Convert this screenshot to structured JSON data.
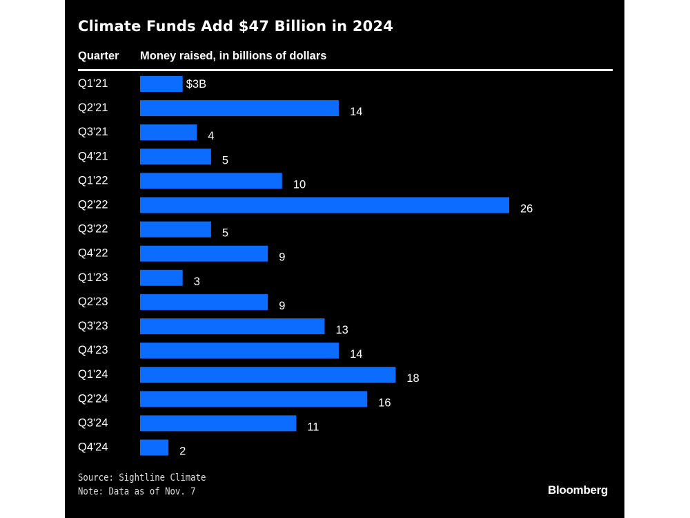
{
  "chart_data": {
    "type": "bar",
    "orientation": "horizontal",
    "title": "Climate Funds Add $47 Billion in 2024",
    "category_header": "Quarter",
    "value_header": "Money raised, in billions of dollars",
    "categories": [
      "Q1'21",
      "Q2'21",
      "Q3'21",
      "Q4'21",
      "Q1'22",
      "Q2'22",
      "Q3'22",
      "Q4'22",
      "Q1'23",
      "Q2'23",
      "Q3'23",
      "Q4'23",
      "Q1'24",
      "Q2'24",
      "Q3'24",
      "Q4'24"
    ],
    "values": [
      3,
      14,
      4,
      5,
      10,
      26,
      5,
      9,
      3,
      9,
      13,
      14,
      18,
      16,
      11,
      2
    ],
    "data_labels": [
      "$3B",
      "14",
      "4",
      "5",
      "10",
      "26",
      "5",
      "9",
      "3",
      "9",
      "13",
      "14",
      "18",
      "16",
      "11",
      "2"
    ],
    "xlim": [
      0,
      26
    ],
    "grid": false,
    "bar_color": "#0b6cff",
    "background": "#000000"
  },
  "footer": {
    "source": "Source: Sightline Climate",
    "note": "Note: Data as of Nov. 7",
    "brand": "Bloomberg"
  }
}
